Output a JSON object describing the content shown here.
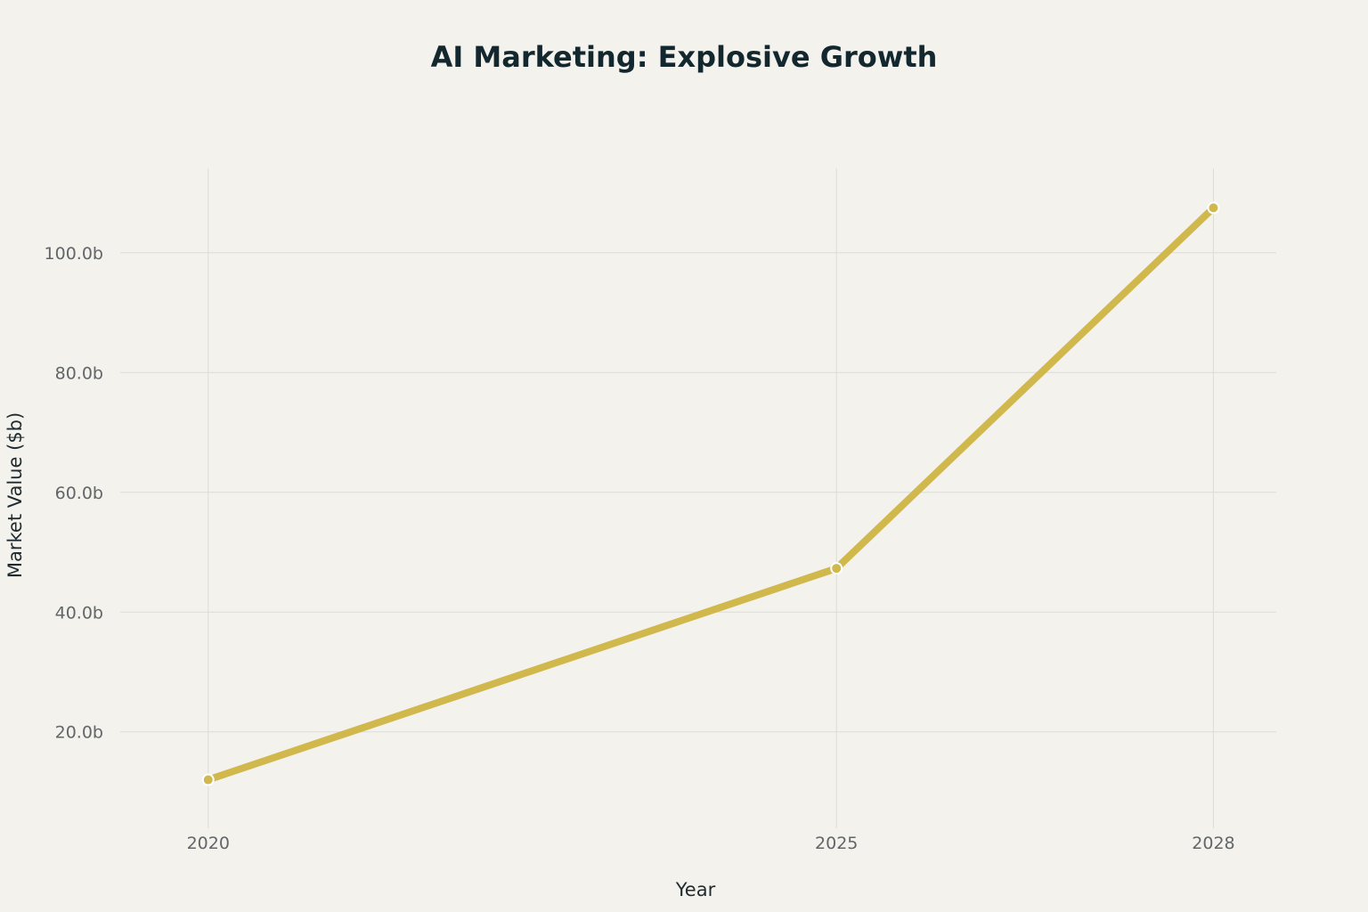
{
  "chart_data": {
    "type": "line",
    "title": "AI Marketing: Explosive Growth",
    "xlabel": "Year",
    "ylabel": "Market Value ($b)",
    "x": [
      "2020",
      "2025",
      "2028"
    ],
    "x_numeric": [
      2020,
      2025,
      2028
    ],
    "series": [
      {
        "name": "Market Value",
        "values": [
          12.0,
          47.3,
          107.5
        ]
      }
    ],
    "y_ticks": [
      20,
      40,
      60,
      80,
      100
    ],
    "y_tick_labels": [
      "20.0b",
      "40.0b",
      "60.0b",
      "80.0b",
      "100.0b"
    ],
    "xlim": [
      2019.3,
      2028.5
    ],
    "ylim": [
      3.9,
      114.1
    ],
    "grid": true,
    "legend": "none",
    "colors": {
      "line": "#d0b84c",
      "marker_edge": "#ffffff",
      "background": "#f3f2ec"
    }
  }
}
